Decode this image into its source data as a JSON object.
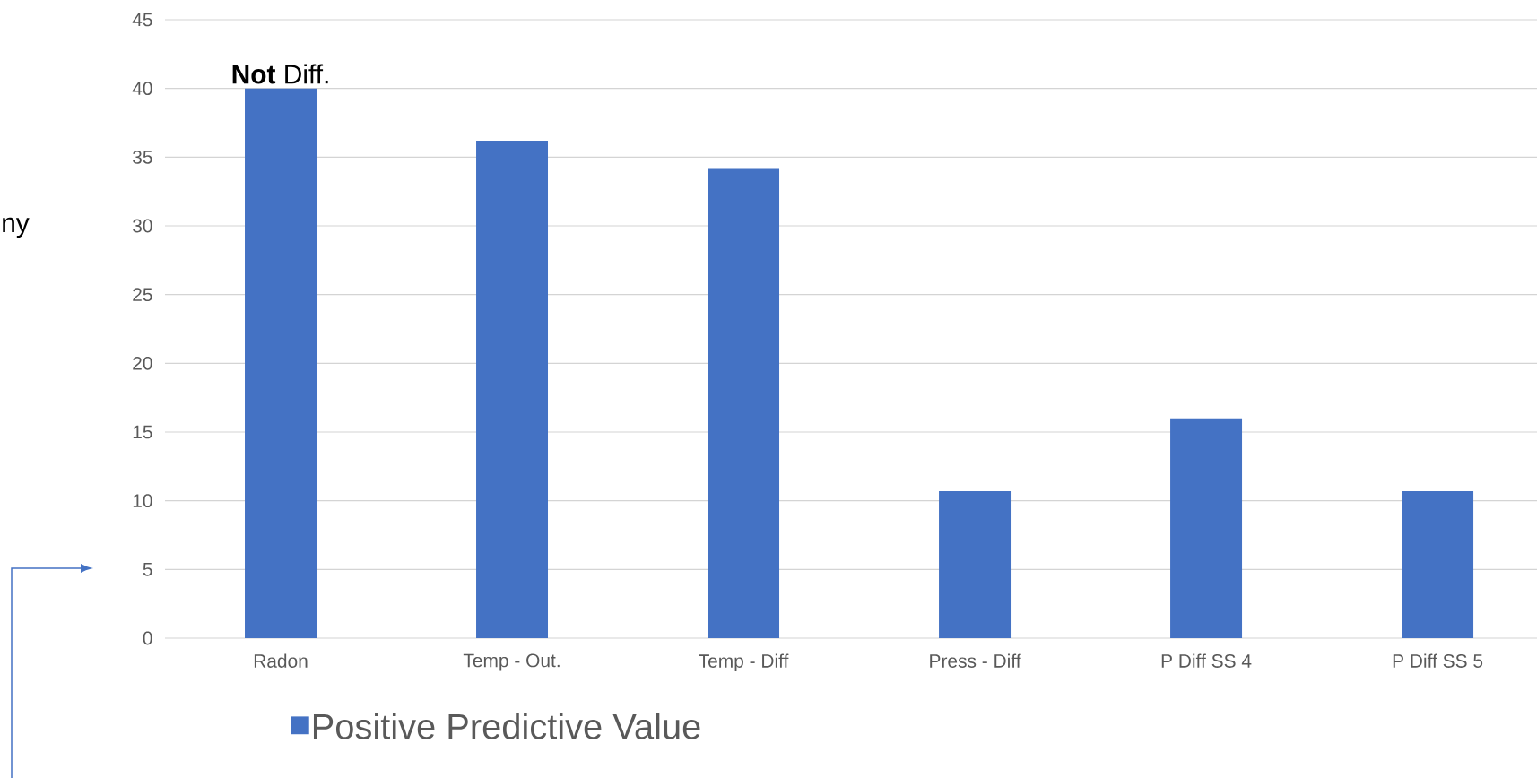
{
  "chart_data": {
    "type": "bar",
    "categories": [
      "Radon",
      "Temp - Out.",
      "Temp - Diff",
      "Press - Diff",
      "P Diff SS 4",
      "P Diff SS 5"
    ],
    "series": [
      {
        "name": "Positive Predictive Value",
        "color": "#4472c4",
        "values": [
          40,
          36.2,
          34.2,
          10.7,
          16,
          10.7
        ]
      }
    ],
    "ylim": [
      0,
      45
    ],
    "yticks": [
      0,
      5,
      10,
      15,
      20,
      25,
      30,
      35,
      40,
      45
    ],
    "grid": "y",
    "legend": "bottom",
    "annotations": [
      {
        "text": "**Not** Diff.",
        "x": "Radon",
        "y": 40
      },
      "ny"
    ]
  }
}
